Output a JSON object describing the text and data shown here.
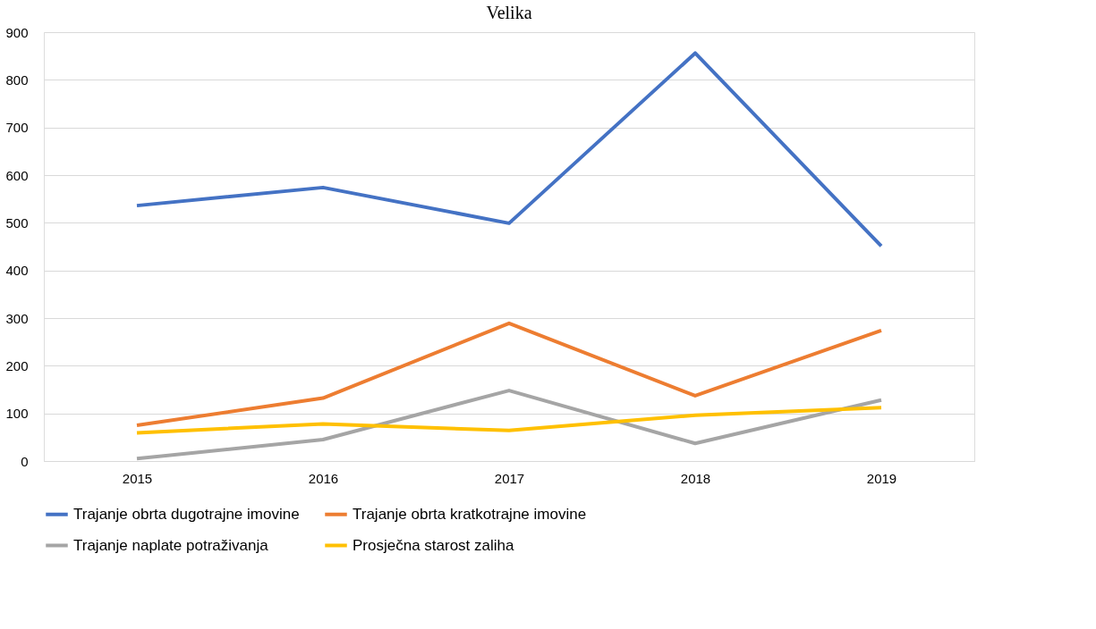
{
  "chart_data": {
    "type": "line",
    "title": "Velika",
    "categories": [
      "2015",
      "2016",
      "2017",
      "2018",
      "2019"
    ],
    "series": [
      {
        "name": "Trajanje obrta dugotrajne imovine",
        "color": "#4472c4",
        "values": [
          536,
          574,
          499,
          856,
          451
        ]
      },
      {
        "name": "Trajanje obrta kratkotrajne imovine",
        "color": "#ed7d31",
        "values": [
          75,
          132,
          289,
          137,
          274
        ]
      },
      {
        "name": "Trajanje naplate potraživanja",
        "color": "#a5a5a5",
        "values": [
          5,
          45,
          148,
          37,
          128
        ]
      },
      {
        "name": "Prosječna starost zaliha",
        "color": "#ffc000",
        "values": [
          59,
          78,
          64,
          96,
          112
        ]
      }
    ],
    "ylim": [
      0,
      900
    ],
    "yticks": [
      0,
      100,
      200,
      300,
      400,
      500,
      600,
      700,
      800,
      900
    ],
    "grid": "y",
    "legend": "bottom",
    "marker": "none",
    "line_style": "solid"
  }
}
